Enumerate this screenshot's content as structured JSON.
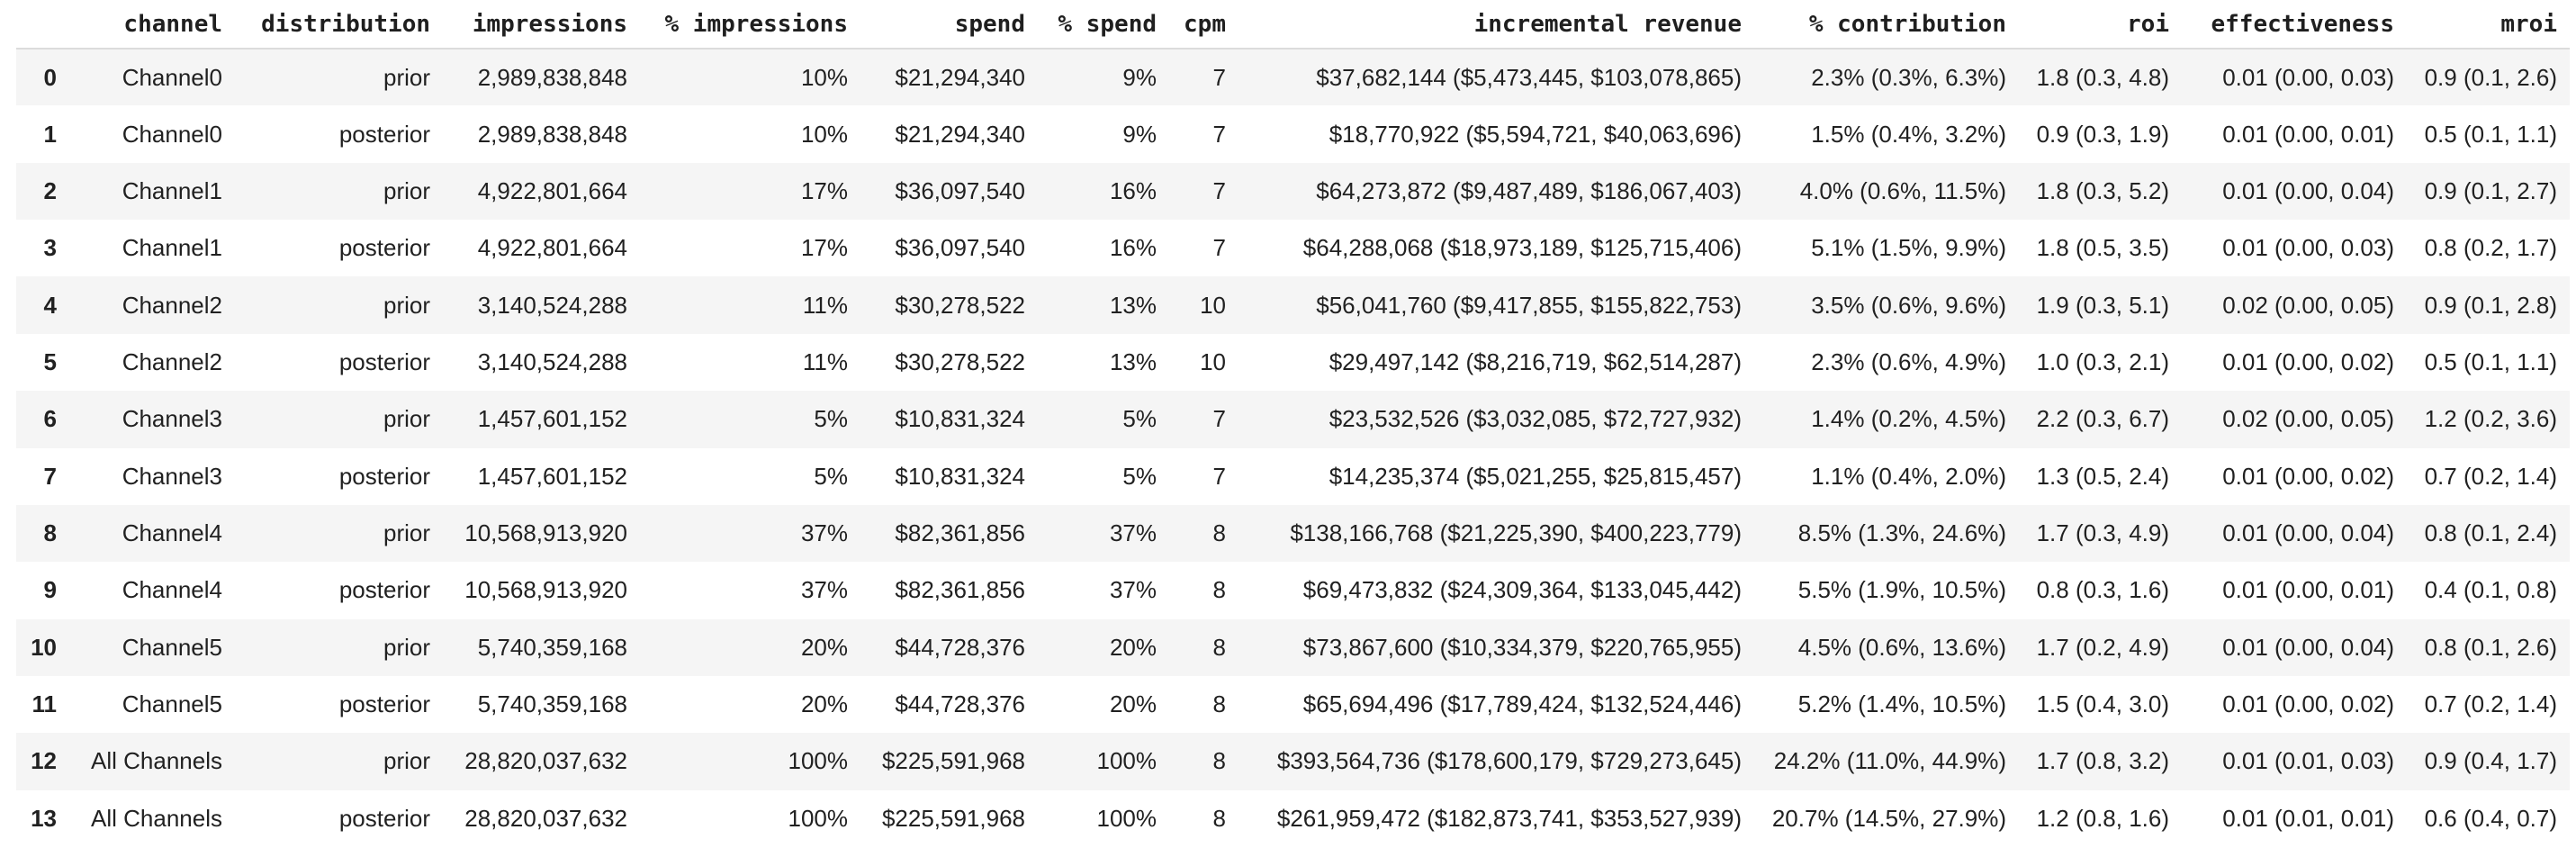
{
  "style": {
    "colors": {
      "background": "#ffffff",
      "row_stripe": "#f5f5f5",
      "header_border": "#dcdcdc",
      "text": "#212121"
    }
  },
  "chart_data": {
    "type": "table",
    "title": "",
    "index_header": "",
    "columns": [
      "channel",
      "distribution",
      "impressions",
      "% impressions",
      "spend",
      "% spend",
      "cpm",
      "incremental revenue",
      "% contribution",
      "roi",
      "effectiveness",
      "mroi"
    ],
    "rows": [
      {
        "index": "0",
        "cells": [
          "Channel0",
          "prior",
          "2,989,838,848",
          "10%",
          "$21,294,340",
          "9%",
          "7",
          "$37,682,144 ($5,473,445, $103,078,865)",
          "2.3% (0.3%, 6.3%)",
          "1.8 (0.3, 4.8)",
          "0.01 (0.00, 0.03)",
          "0.9 (0.1, 2.6)"
        ]
      },
      {
        "index": "1",
        "cells": [
          "Channel0",
          "posterior",
          "2,989,838,848",
          "10%",
          "$21,294,340",
          "9%",
          "7",
          "$18,770,922 ($5,594,721, $40,063,696)",
          "1.5% (0.4%, 3.2%)",
          "0.9 (0.3, 1.9)",
          "0.01 (0.00, 0.01)",
          "0.5 (0.1, 1.1)"
        ]
      },
      {
        "index": "2",
        "cells": [
          "Channel1",
          "prior",
          "4,922,801,664",
          "17%",
          "$36,097,540",
          "16%",
          "7",
          "$64,273,872 ($9,487,489, $186,067,403)",
          "4.0% (0.6%, 11.5%)",
          "1.8 (0.3, 5.2)",
          "0.01 (0.00, 0.04)",
          "0.9 (0.1, 2.7)"
        ]
      },
      {
        "index": "3",
        "cells": [
          "Channel1",
          "posterior",
          "4,922,801,664",
          "17%",
          "$36,097,540",
          "16%",
          "7",
          "$64,288,068 ($18,973,189, $125,715,406)",
          "5.1% (1.5%, 9.9%)",
          "1.8 (0.5, 3.5)",
          "0.01 (0.00, 0.03)",
          "0.8 (0.2, 1.7)"
        ]
      },
      {
        "index": "4",
        "cells": [
          "Channel2",
          "prior",
          "3,140,524,288",
          "11%",
          "$30,278,522",
          "13%",
          "10",
          "$56,041,760 ($9,417,855, $155,822,753)",
          "3.5% (0.6%, 9.6%)",
          "1.9 (0.3, 5.1)",
          "0.02 (0.00, 0.05)",
          "0.9 (0.1, 2.8)"
        ]
      },
      {
        "index": "5",
        "cells": [
          "Channel2",
          "posterior",
          "3,140,524,288",
          "11%",
          "$30,278,522",
          "13%",
          "10",
          "$29,497,142 ($8,216,719, $62,514,287)",
          "2.3% (0.6%, 4.9%)",
          "1.0 (0.3, 2.1)",
          "0.01 (0.00, 0.02)",
          "0.5 (0.1, 1.1)"
        ]
      },
      {
        "index": "6",
        "cells": [
          "Channel3",
          "prior",
          "1,457,601,152",
          "5%",
          "$10,831,324",
          "5%",
          "7",
          "$23,532,526 ($3,032,085, $72,727,932)",
          "1.4% (0.2%, 4.5%)",
          "2.2 (0.3, 6.7)",
          "0.02 (0.00, 0.05)",
          "1.2 (0.2, 3.6)"
        ]
      },
      {
        "index": "7",
        "cells": [
          "Channel3",
          "posterior",
          "1,457,601,152",
          "5%",
          "$10,831,324",
          "5%",
          "7",
          "$14,235,374 ($5,021,255, $25,815,457)",
          "1.1% (0.4%, 2.0%)",
          "1.3 (0.5, 2.4)",
          "0.01 (0.00, 0.02)",
          "0.7 (0.2, 1.4)"
        ]
      },
      {
        "index": "8",
        "cells": [
          "Channel4",
          "prior",
          "10,568,913,920",
          "37%",
          "$82,361,856",
          "37%",
          "8",
          "$138,166,768 ($21,225,390, $400,223,779)",
          "8.5% (1.3%, 24.6%)",
          "1.7 (0.3, 4.9)",
          "0.01 (0.00, 0.04)",
          "0.8 (0.1, 2.4)"
        ]
      },
      {
        "index": "9",
        "cells": [
          "Channel4",
          "posterior",
          "10,568,913,920",
          "37%",
          "$82,361,856",
          "37%",
          "8",
          "$69,473,832 ($24,309,364, $133,045,442)",
          "5.5% (1.9%, 10.5%)",
          "0.8 (0.3, 1.6)",
          "0.01 (0.00, 0.01)",
          "0.4 (0.1, 0.8)"
        ]
      },
      {
        "index": "10",
        "cells": [
          "Channel5",
          "prior",
          "5,740,359,168",
          "20%",
          "$44,728,376",
          "20%",
          "8",
          "$73,867,600 ($10,334,379, $220,765,955)",
          "4.5% (0.6%, 13.6%)",
          "1.7 (0.2, 4.9)",
          "0.01 (0.00, 0.04)",
          "0.8 (0.1, 2.6)"
        ]
      },
      {
        "index": "11",
        "cells": [
          "Channel5",
          "posterior",
          "5,740,359,168",
          "20%",
          "$44,728,376",
          "20%",
          "8",
          "$65,694,496 ($17,789,424, $132,524,446)",
          "5.2% (1.4%, 10.5%)",
          "1.5 (0.4, 3.0)",
          "0.01 (0.00, 0.02)",
          "0.7 (0.2, 1.4)"
        ]
      },
      {
        "index": "12",
        "cells": [
          "All Channels",
          "prior",
          "28,820,037,632",
          "100%",
          "$225,591,968",
          "100%",
          "8",
          "$393,564,736 ($178,600,179, $729,273,645)",
          "24.2% (11.0%, 44.9%)",
          "1.7 (0.8, 3.2)",
          "0.01 (0.01, 0.03)",
          "0.9 (0.4, 1.7)"
        ]
      },
      {
        "index": "13",
        "cells": [
          "All Channels",
          "posterior",
          "28,820,037,632",
          "100%",
          "$225,591,968",
          "100%",
          "8",
          "$261,959,472 ($182,873,741, $353,527,939)",
          "20.7% (14.5%, 27.9%)",
          "1.2 (0.8, 1.6)",
          "0.01 (0.01, 0.01)",
          "0.6 (0.4, 0.7)"
        ]
      }
    ]
  }
}
